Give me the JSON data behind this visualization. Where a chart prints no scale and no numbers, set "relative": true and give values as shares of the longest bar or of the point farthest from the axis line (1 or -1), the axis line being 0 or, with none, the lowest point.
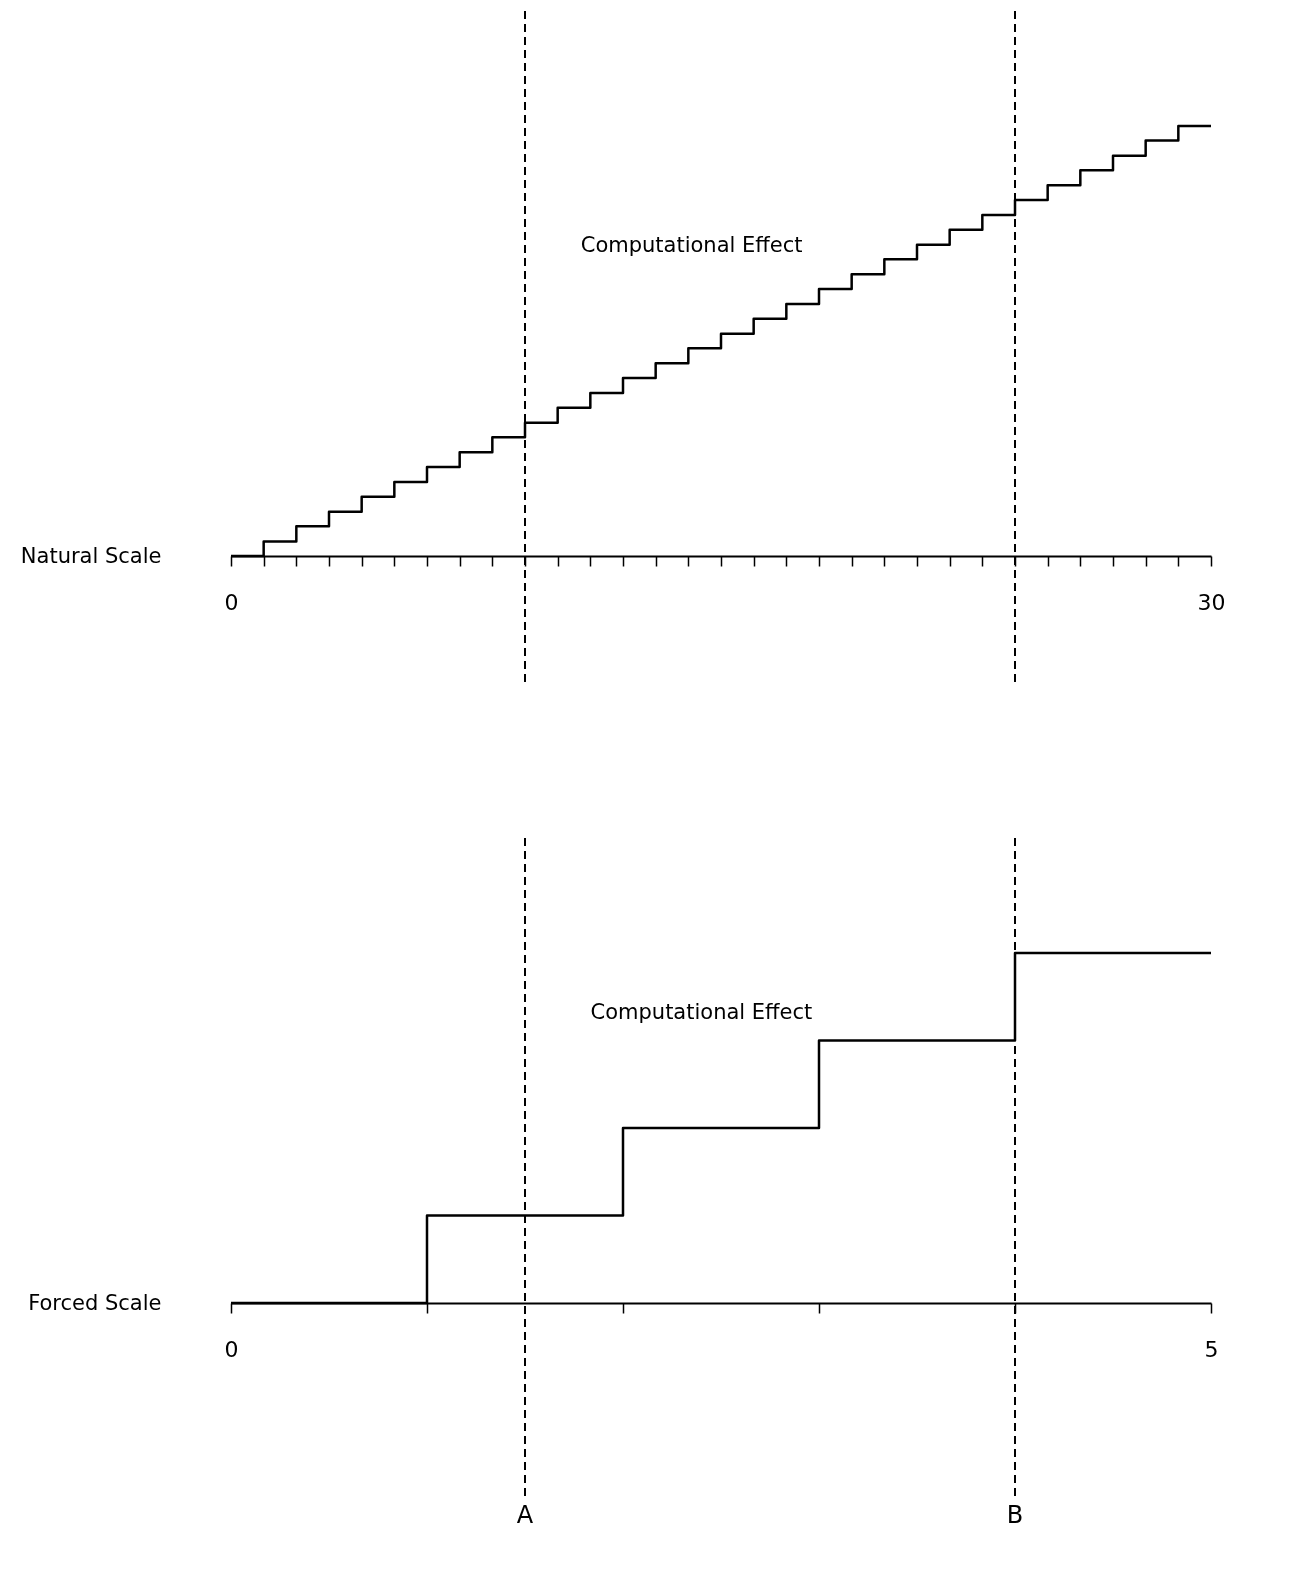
{
  "chart_data": [
    {
      "type": "step",
      "relative": true,
      "ylabel": "Natural Scale",
      "xlim": [
        0,
        30
      ],
      "xticks": [
        0,
        {
          "value": 1,
          "label": null
        },
        {
          "value": 2,
          "label": null
        },
        {
          "value": 3,
          "label": null
        },
        {
          "value": 4,
          "label": null
        },
        {
          "value": 5,
          "label": null
        },
        {
          "value": 6,
          "label": null
        },
        {
          "value": 7,
          "label": null
        },
        {
          "value": 8,
          "label": null
        },
        {
          "value": 9,
          "label": null
        },
        {
          "value": 10,
          "label": null
        },
        {
          "value": 11,
          "label": null
        },
        {
          "value": 12,
          "label": null
        },
        {
          "value": 13,
          "label": null
        },
        {
          "value": 14,
          "label": null
        },
        {
          "value": 15,
          "label": null
        },
        {
          "value": 16,
          "label": null
        },
        {
          "value": 17,
          "label": null
        },
        {
          "value": 18,
          "label": null
        },
        {
          "value": 19,
          "label": null
        },
        {
          "value": 20,
          "label": null
        },
        {
          "value": 21,
          "label": null
        },
        {
          "value": 22,
          "label": null
        },
        {
          "value": 23,
          "label": null
        },
        {
          "value": 24,
          "label": null
        },
        {
          "value": 25,
          "label": null
        },
        {
          "value": 26,
          "label": null
        },
        {
          "value": 27,
          "label": null
        },
        {
          "value": 28,
          "label": null
        },
        {
          "value": 29,
          "label": null
        },
        30
      ],
      "x": [
        0,
        1,
        2,
        3,
        4,
        5,
        6,
        7,
        8,
        9,
        10,
        11,
        12,
        13,
        14,
        15,
        16,
        17,
        18,
        19,
        20,
        21,
        22,
        23,
        24,
        25,
        26,
        27,
        28,
        29,
        30
      ],
      "series": [
        {
          "color": "#000000",
          "values": [
            0,
            0.034,
            0.069,
            0.103,
            0.138,
            0.172,
            0.207,
            0.241,
            0.276,
            0.31,
            0.345,
            0.379,
            0.414,
            0.448,
            0.483,
            0.517,
            0.552,
            0.586,
            0.621,
            0.655,
            0.69,
            0.724,
            0.759,
            0.793,
            0.828,
            0.862,
            0.897,
            0.931,
            0.966,
            1,
            1
          ]
        }
      ],
      "ref_lines": [
        {
          "axis": "x",
          "value": 9,
          "label": null,
          "line_style": "dashed"
        },
        {
          "axis": "x",
          "value": 24,
          "label": null,
          "line_style": "dashed"
        }
      ],
      "annotations": [
        "Computational Effect"
      ],
      "tick_labels": "x",
      "grid": false,
      "legend": false,
      "line_style": "solid",
      "marker": "none"
    },
    {
      "type": "step",
      "relative": true,
      "ylabel": "Forced Scale",
      "xlim": [
        0,
        5
      ],
      "xticks": [
        0,
        {
          "value": 1,
          "label": null
        },
        {
          "value": 2,
          "label": null
        },
        {
          "value": 3,
          "label": null
        },
        {
          "value": 4,
          "label": null
        },
        5
      ],
      "x": [
        0,
        1,
        2,
        3,
        4,
        5
      ],
      "series": [
        {
          "color": "#000000",
          "values": [
            0,
            0.25,
            0.5,
            0.75,
            1,
            1
          ]
        }
      ],
      "ref_lines": [
        {
          "axis": "x",
          "value": 1.5,
          "label": "A",
          "line_style": "dashed"
        },
        {
          "axis": "x",
          "value": 4,
          "label": "B",
          "line_style": "dashed"
        }
      ],
      "annotations": [
        "Computational Effect"
      ],
      "tick_labels": "x",
      "grid": false,
      "legend": false,
      "line_style": "solid",
      "marker": "none"
    }
  ]
}
